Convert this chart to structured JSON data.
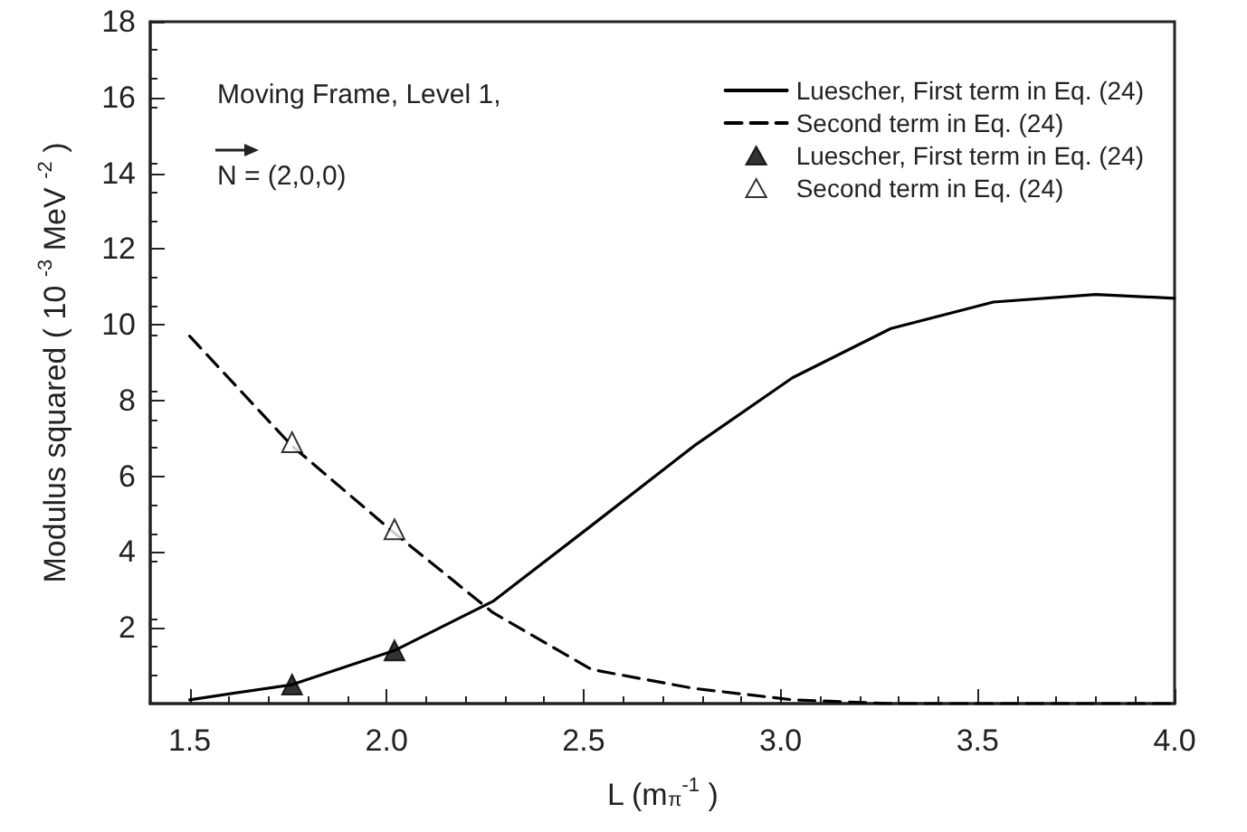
{
  "chart_data": {
    "type": "line",
    "xlabel": "L (m$_{π}$$^{-1}$ )",
    "ylabel": "Modulus squared ( 10 $^{-3}$ MeV $^{-2}$ )",
    "annotations": [
      "Moving Frame, Level 1,",
      "N = (2,0,0)"
    ],
    "series": [
      {
        "name": "Luescher, First term in Eq. (24)",
        "color": "#000000",
        "line_style": "solid",
        "marker": "none",
        "x": [
          1.5,
          1.76,
          2.02,
          2.27,
          2.52,
          2.78,
          3.03,
          3.28,
          3.54,
          3.8,
          4.0
        ],
        "values": [
          0.1,
          0.5,
          1.4,
          2.7,
          4.7,
          6.8,
          8.6,
          9.9,
          10.6,
          10.8,
          10.7
        ]
      },
      {
        "name": "Second term in Eq. (24)",
        "color": "#000000",
        "line_style": "dashed",
        "marker": "none",
        "x": [
          1.5,
          1.76,
          2.02,
          2.27,
          2.52,
          2.78,
          3.03,
          3.28,
          3.54,
          4.0
        ],
        "values": [
          9.7,
          6.8,
          4.5,
          2.4,
          0.9,
          0.4,
          0.1,
          0.0,
          0.0,
          0.0
        ]
      },
      {
        "name": "Luescher, First term in Eq. (24)",
        "type": "scatter",
        "color": "#000000",
        "marker": "triangle",
        "x": [
          1.76,
          2.02
        ],
        "values": [
          0.5,
          1.4
        ]
      },
      {
        "name": "Second term in Eq. (24)",
        "type": "scatter",
        "color": "#ffffff",
        "marker": "triangle",
        "x": [
          1.76,
          2.02
        ],
        "values": [
          6.9,
          4.6
        ]
      }
    ],
    "xlim": [
      1.4,
      4.0
    ],
    "xticks": [
      1.5,
      {
        "value": 2,
        "label": "2.0"
      },
      2.5,
      {
        "value": 3,
        "label": "3.0"
      },
      3.5,
      {
        "value": 4,
        "label": "4.0"
      }
    ],
    "ylim": [
      0,
      18
    ],
    "yticks": [
      2,
      4,
      6,
      8,
      10,
      12,
      14,
      16,
      18
    ],
    "grid": false,
    "legend": "top right"
  }
}
